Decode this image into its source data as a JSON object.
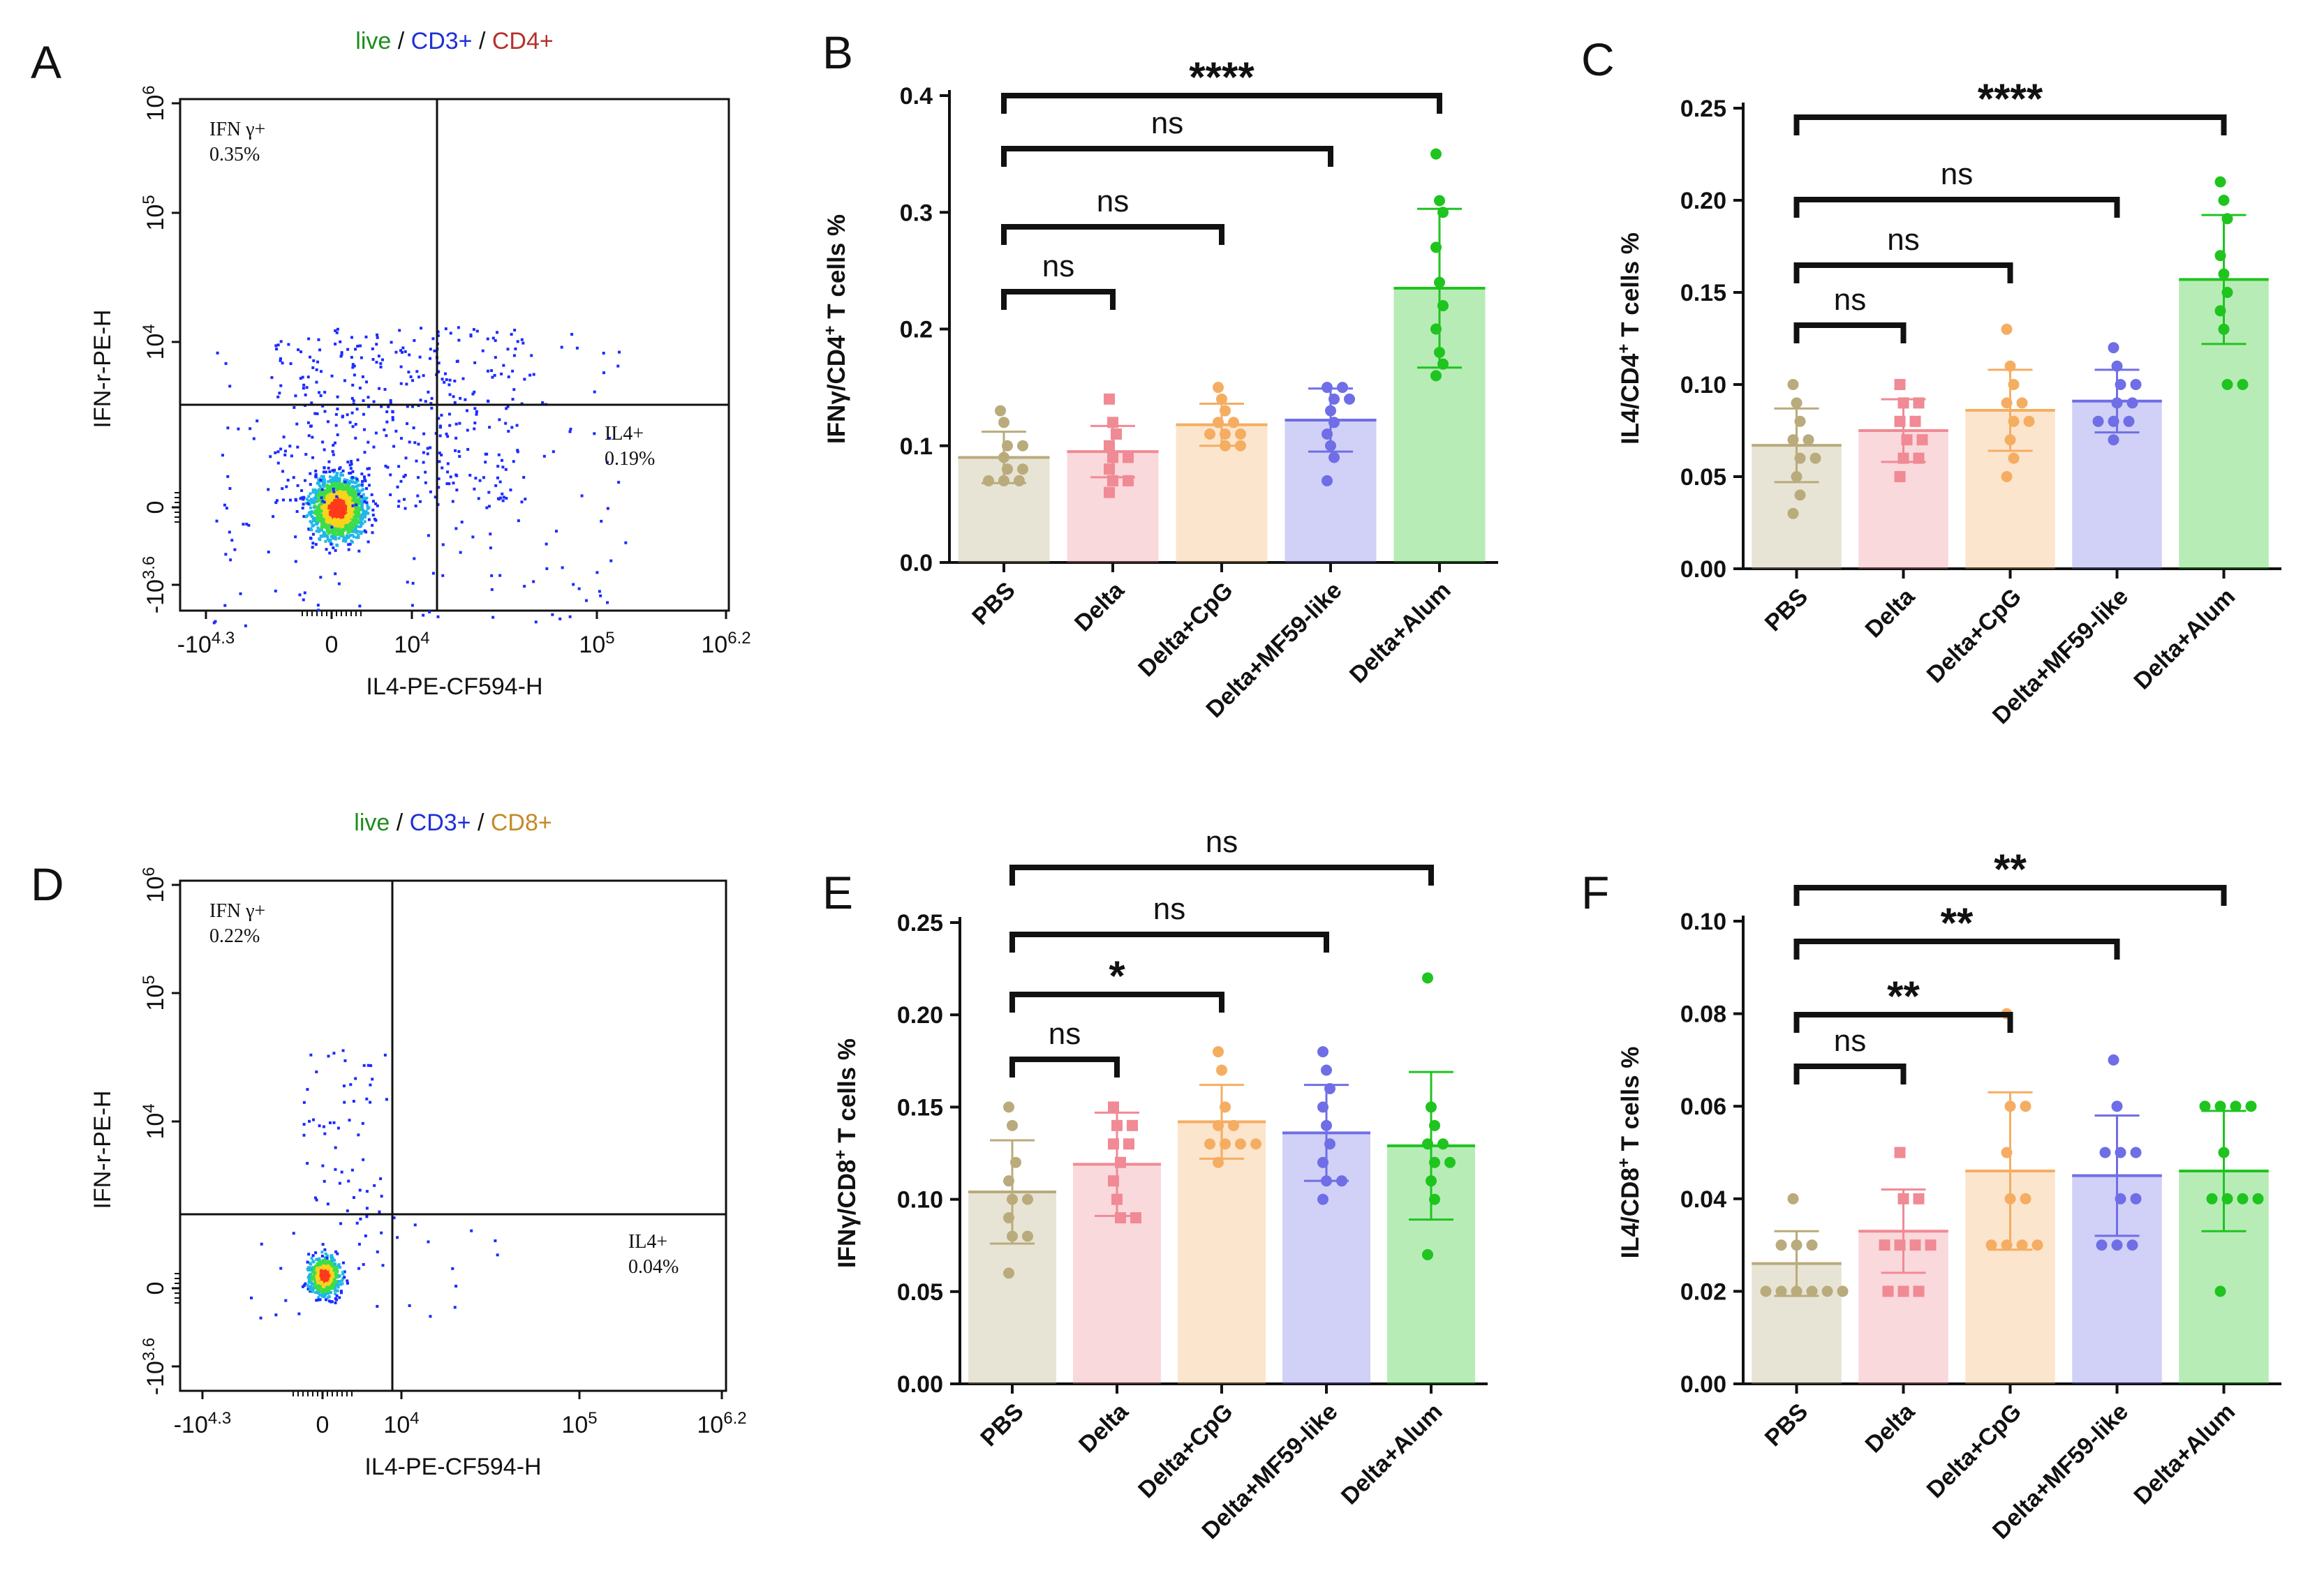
{
  "panel_letters": [
    "A",
    "B",
    "C",
    "D",
    "E",
    "F"
  ],
  "colors": {
    "PBS": "#b9ab7c",
    "Delta": "#f08a94",
    "Delta+CpG": "#f5ad62",
    "Delta+MF59-like": "#6f6ee6",
    "Delta+Alum": "#1fc41f",
    "gate_live": "#1f8c1f",
    "gate_cd3": "#1f2fd8",
    "gate_cd4": "#b3312d",
    "gate_cd8": "#c48a28"
  },
  "chart_data": [
    {
      "panel": "A",
      "type": "scatter",
      "subtype": "flow-cytometry-dot-plot",
      "gating_title": [
        "live",
        "CD3+",
        "CD4+"
      ],
      "gating_sep": " / ",
      "xlabel": "IL4-PE-CF594-H",
      "ylabel": "IFN-r-PE-H",
      "x_ticks": [
        {
          "value": -20000,
          "base": "-10",
          "exp": "4.3"
        },
        {
          "value": 0,
          "base": "0",
          "exp": ""
        },
        {
          "value": 10000,
          "base": "10",
          "exp": "4"
        },
        {
          "value": 100000,
          "base": "10",
          "exp": "5"
        },
        {
          "value": 1585000,
          "base": "10",
          "exp": "6.2"
        }
      ],
      "y_ticks": [
        {
          "value": -4000,
          "base": "-10",
          "exp": "3.6"
        },
        {
          "value": 0,
          "base": "0",
          "exp": ""
        },
        {
          "value": 10000,
          "base": "10",
          "exp": "4"
        },
        {
          "value": 100000,
          "base": "10",
          "exp": "5"
        },
        {
          "value": 1000000,
          "base": "10",
          "exp": "6"
        }
      ],
      "quadrants": [
        {
          "name": "IFN γ+",
          "percent": "0.35%"
        },
        {
          "name": "IL4+",
          "percent": "0.19%"
        }
      ]
    },
    {
      "panel": "B",
      "type": "bar",
      "ylabel_parts": [
        "IFNγ/CD4",
        "+",
        " T cells %"
      ],
      "ylim": [
        0,
        0.4
      ],
      "y_ticks": [
        "0.0",
        "0.1",
        "0.2",
        "0.3",
        "0.4"
      ],
      "y_tick_values": [
        0,
        0.1,
        0.2,
        0.3,
        0.4
      ],
      "categories": [
        "PBS",
        "Delta",
        "Delta+CpG",
        "Delta+MF59-like",
        "Delta+Alum"
      ],
      "values": [
        0.09,
        0.095,
        0.118,
        0.122,
        0.235
      ],
      "sd": [
        0.022,
        0.022,
        0.018,
        0.027,
        0.068
      ],
      "points": [
        [
          0.13,
          0.12,
          0.1,
          0.1,
          0.09,
          0.08,
          0.08,
          0.07,
          0.07,
          0.07
        ],
        [
          0.14,
          0.12,
          0.11,
          0.1,
          0.09,
          0.09,
          0.08,
          0.07,
          0.07,
          0.06
        ],
        [
          0.15,
          0.14,
          0.13,
          0.12,
          0.12,
          0.11,
          0.11,
          0.11,
          0.1,
          0.1
        ],
        [
          0.15,
          0.15,
          0.14,
          0.14,
          0.13,
          0.12,
          0.11,
          0.1,
          0.09,
          0.07
        ],
        [
          0.35,
          0.31,
          0.3,
          0.27,
          0.24,
          0.22,
          0.2,
          0.18,
          0.17,
          0.16
        ]
      ],
      "comparisons": [
        {
          "from": 0,
          "to": 1,
          "label": "ns"
        },
        {
          "from": 0,
          "to": 2,
          "label": "ns"
        },
        {
          "from": 0,
          "to": 3,
          "label": "ns"
        },
        {
          "from": 0,
          "to": 4,
          "label": "****"
        }
      ]
    },
    {
      "panel": "C",
      "type": "bar",
      "ylabel_parts": [
        "IL4/CD4",
        "+",
        " T cells %"
      ],
      "ylim": [
        0,
        0.25
      ],
      "y_ticks": [
        "0.00",
        "0.05",
        "0.10",
        "0.15",
        "0.20",
        "0.25"
      ],
      "y_tick_values": [
        0,
        0.05,
        0.1,
        0.15,
        0.2,
        0.25
      ],
      "categories": [
        "PBS",
        "Delta",
        "Delta+CpG",
        "Delta+MF59-like",
        "Delta+Alum"
      ],
      "values": [
        0.067,
        0.075,
        0.086,
        0.091,
        0.157
      ],
      "sd": [
        0.02,
        0.017,
        0.022,
        0.017,
        0.035
      ],
      "points": [
        [
          0.1,
          0.09,
          0.08,
          0.07,
          0.07,
          0.06,
          0.06,
          0.05,
          0.04,
          0.03
        ],
        [
          0.1,
          0.09,
          0.09,
          0.08,
          0.08,
          0.07,
          0.07,
          0.06,
          0.06,
          0.05
        ],
        [
          0.13,
          0.11,
          0.1,
          0.09,
          0.09,
          0.08,
          0.08,
          0.07,
          0.06,
          0.05
        ],
        [
          0.12,
          0.11,
          0.1,
          0.1,
          0.09,
          0.09,
          0.08,
          0.08,
          0.08,
          0.07
        ],
        [
          0.21,
          0.2,
          0.19,
          0.17,
          0.16,
          0.15,
          0.14,
          0.13,
          0.1,
          0.1
        ]
      ],
      "comparisons": [
        {
          "from": 0,
          "to": 1,
          "label": "ns"
        },
        {
          "from": 0,
          "to": 2,
          "label": "ns"
        },
        {
          "from": 0,
          "to": 3,
          "label": "ns"
        },
        {
          "from": 0,
          "to": 4,
          "label": "****"
        }
      ]
    },
    {
      "panel": "D",
      "type": "scatter",
      "subtype": "flow-cytometry-dot-plot",
      "gating_title": [
        "live",
        "CD3+",
        "CD8+"
      ],
      "gating_sep": " / ",
      "xlabel": "IL4-PE-CF594-H",
      "ylabel": "IFN-r-PE-H",
      "x_ticks": [
        {
          "value": -20000,
          "base": "-10",
          "exp": "4.3"
        },
        {
          "value": 0,
          "base": "0",
          "exp": ""
        },
        {
          "value": 10000,
          "base": "10",
          "exp": "4"
        },
        {
          "value": 100000,
          "base": "10",
          "exp": "5"
        },
        {
          "value": 1585000,
          "base": "10",
          "exp": "6.2"
        }
      ],
      "y_ticks": [
        {
          "value": -4000,
          "base": "-10",
          "exp": "3.6"
        },
        {
          "value": 0,
          "base": "0",
          "exp": ""
        },
        {
          "value": 10000,
          "base": "10",
          "exp": "4"
        },
        {
          "value": 100000,
          "base": "10",
          "exp": "5"
        },
        {
          "value": 1000000,
          "base": "10",
          "exp": "6"
        }
      ],
      "quadrants": [
        {
          "name": "IFN γ+",
          "percent": "0.22%"
        },
        {
          "name": "IL4+",
          "percent": "0.04%"
        }
      ]
    },
    {
      "panel": "E",
      "type": "bar",
      "ylabel_parts": [
        "IFNγ/CD8",
        "+",
        " T cells %"
      ],
      "ylim": [
        0,
        0.25
      ],
      "y_ticks": [
        "0.00",
        "0.05",
        "0.10",
        "0.15",
        "0.20",
        "0.25"
      ],
      "y_tick_values": [
        0,
        0.05,
        0.1,
        0.15,
        0.2,
        0.25
      ],
      "categories": [
        "PBS",
        "Delta",
        "Delta+CpG",
        "Delta+MF59-like",
        "Delta+Alum"
      ],
      "values": [
        0.104,
        0.119,
        0.142,
        0.136,
        0.129
      ],
      "sd": [
        0.028,
        0.028,
        0.02,
        0.026,
        0.04
      ],
      "points": [
        [
          0.15,
          0.14,
          0.12,
          0.11,
          0.1,
          0.1,
          0.09,
          0.08,
          0.08,
          0.06
        ],
        [
          0.15,
          0.14,
          0.14,
          0.13,
          0.13,
          0.12,
          0.11,
          0.1,
          0.09,
          0.09
        ],
        [
          0.18,
          0.17,
          0.15,
          0.14,
          0.14,
          0.13,
          0.13,
          0.13,
          0.13,
          0.12
        ],
        [
          0.18,
          0.17,
          0.16,
          0.15,
          0.14,
          0.13,
          0.12,
          0.11,
          0.11,
          0.1
        ],
        [
          0.22,
          0.15,
          0.14,
          0.13,
          0.13,
          0.12,
          0.12,
          0.11,
          0.1,
          0.07
        ]
      ],
      "comparisons": [
        {
          "from": 0,
          "to": 1,
          "label": "ns"
        },
        {
          "from": 0,
          "to": 2,
          "label": "*"
        },
        {
          "from": 0,
          "to": 3,
          "label": "ns"
        },
        {
          "from": 0,
          "to": 4,
          "label": "ns"
        }
      ]
    },
    {
      "panel": "F",
      "type": "bar",
      "ylabel_parts": [
        "IL4/CD8",
        "+",
        " T cells %"
      ],
      "ylim": [
        0,
        0.1
      ],
      "y_ticks": [
        "0.00",
        "0.02",
        "0.04",
        "0.06",
        "0.08",
        "0.10"
      ],
      "y_tick_values": [
        0,
        0.02,
        0.04,
        0.06,
        0.08,
        0.1
      ],
      "categories": [
        "PBS",
        "Delta",
        "Delta+CpG",
        "Delta+MF59-like",
        "Delta+Alum"
      ],
      "values": [
        0.026,
        0.033,
        0.046,
        0.045,
        0.046
      ],
      "sd": [
        0.007,
        0.009,
        0.017,
        0.013,
        0.013
      ],
      "points": [
        [
          0.04,
          0.03,
          0.03,
          0.03,
          0.02,
          0.02,
          0.02,
          0.02,
          0.02,
          0.02
        ],
        [
          0.05,
          0.04,
          0.04,
          0.03,
          0.03,
          0.03,
          0.03,
          0.02,
          0.02,
          0.02
        ],
        [
          0.08,
          0.06,
          0.06,
          0.05,
          0.04,
          0.04,
          0.03,
          0.03,
          0.03,
          0.03
        ],
        [
          0.07,
          0.06,
          0.05,
          0.05,
          0.05,
          0.04,
          0.04,
          0.03,
          0.03,
          0.03
        ],
        [
          0.06,
          0.06,
          0.06,
          0.06,
          0.05,
          0.04,
          0.04,
          0.04,
          0.04,
          0.02
        ]
      ],
      "comparisons": [
        {
          "from": 0,
          "to": 1,
          "label": "ns"
        },
        {
          "from": 0,
          "to": 2,
          "label": "**"
        },
        {
          "from": 0,
          "to": 3,
          "label": "**"
        },
        {
          "from": 0,
          "to": 4,
          "label": "**"
        }
      ]
    }
  ]
}
